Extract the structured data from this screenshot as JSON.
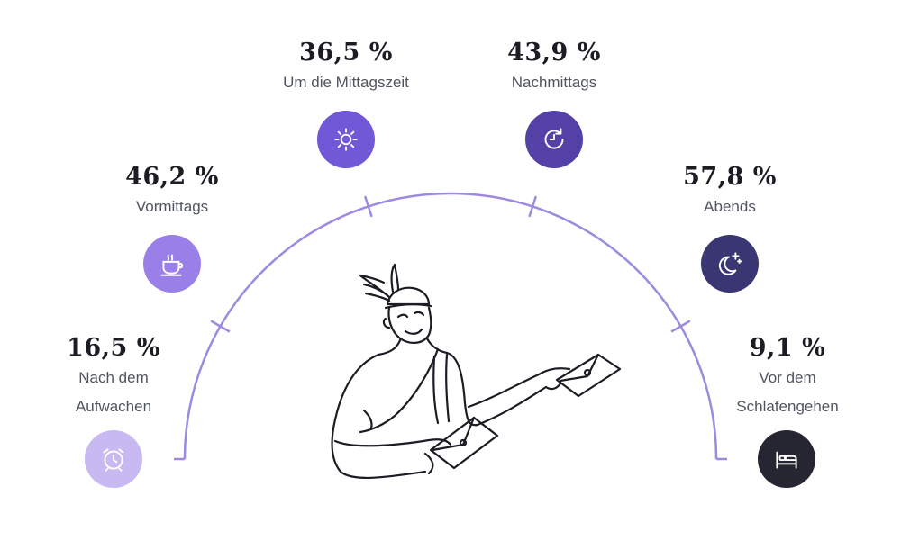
{
  "chart_data": {
    "type": "radial-categories",
    "categories": [
      {
        "value_label": "16,5 %",
        "label": "Nach dem Aufwachen",
        "label_lines": [
          "Nach dem",
          "Aufwachen"
        ],
        "value": 16.5,
        "icon": "alarm-clock-icon",
        "color": "#c9b9f3"
      },
      {
        "value_label": "46,2 %",
        "label": "Vormittags",
        "label_lines": [
          "Vormittags"
        ],
        "value": 46.2,
        "icon": "coffee-cup-icon",
        "color": "#9b7fe8"
      },
      {
        "value_label": "36,5 %",
        "label": "Um die Mittagszeit",
        "label_lines": [
          "Um die Mittagszeit"
        ],
        "value": 36.5,
        "icon": "sun-icon",
        "color": "#7058d6"
      },
      {
        "value_label": "43,9 %",
        "label": "Nachmittags",
        "label_lines": [
          "Nachmittags"
        ],
        "value": 43.9,
        "icon": "clock-arrow-icon",
        "color": "#5441a8"
      },
      {
        "value_label": "57,8 %",
        "label": "Abends",
        "label_lines": [
          "Abends"
        ],
        "value": 57.8,
        "icon": "moon-stars-icon",
        "color": "#3a3573"
      },
      {
        "value_label": "9,1 %",
        "label": "Vor dem Schlafengehen",
        "label_lines": [
          "Vor dem",
          "Schlafengehen"
        ],
        "value": 9.1,
        "icon": "bed-icon",
        "color": "#262532"
      }
    ],
    "arc_color": "#9d8ae0"
  }
}
